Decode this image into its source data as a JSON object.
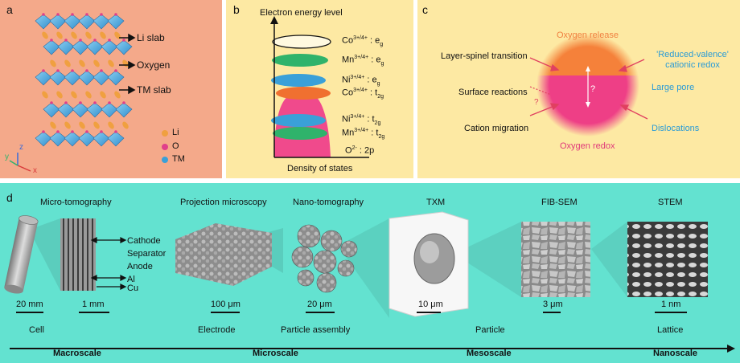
{
  "panel_a": {
    "letter": "a",
    "labels": {
      "li_slab": "Li slab",
      "oxygen": "Oxygen",
      "tm_slab": "TM slab"
    },
    "legend": [
      {
        "label": "Li",
        "color": "#f0a040"
      },
      {
        "label": "O",
        "color": "#e0408a"
      },
      {
        "label": "TM",
        "color": "#3aa0d8"
      }
    ],
    "axes": {
      "z": "z",
      "y": "y",
      "x": "x"
    }
  },
  "panel_b": {
    "letter": "b",
    "y_label": "Electron energy level",
    "x_label": "Density of states",
    "bands": [
      {
        "ion": "Co",
        "ox": "3+/4+",
        "orb": "e",
        "sub": "g",
        "color": "#ffffff"
      },
      {
        "ion": "Mn",
        "ox": "3+/4+",
        "orb": "e",
        "sub": "g",
        "color": "#2fb36b"
      },
      {
        "ion": "Ni",
        "ox": "3+/4+",
        "orb": "e",
        "sub": "g",
        "color": "#3aa0d8"
      },
      {
        "ion": "Co",
        "ox": "3+/4+",
        "orb": "t",
        "sub": "2g",
        "color": "#f07030"
      },
      {
        "ion": "Ni",
        "ox": "3+/4+",
        "orb": "t",
        "sub": "2g",
        "color": "#3aa0d8"
      },
      {
        "ion": "Mn",
        "ox": "3+/4+",
        "orb": "t",
        "sub": "2g",
        "color": "#2fb36b"
      }
    ],
    "o_band": {
      "ion": "O",
      "ox": "2-",
      "orb": ": 2p",
      "color": "#f04a8c"
    }
  },
  "panel_c": {
    "letter": "c",
    "top": "Oxygen release",
    "bottom": "Oxygen redox",
    "left": [
      "Layer-spinel transition",
      "Surface reactions",
      "Cation migration"
    ],
    "right": [
      "'Reduced-valence' cationic redox",
      "Large pore",
      "Dislocations"
    ],
    "question": "?",
    "colors": {
      "release": "#f5813a",
      "redox": "#ee3f86"
    }
  },
  "panel_d": {
    "letter": "d",
    "techniques": [
      "Micro-tomography",
      "Projection microscopy",
      "Nano-tomography",
      "TXM",
      "FIB-SEM",
      "STEM"
    ],
    "layers": [
      "Cathode",
      "Separator",
      "Anode",
      "Al",
      "Cu"
    ],
    "scale_bars": [
      "20 mm",
      "1 mm",
      "100 μm",
      "20 μm",
      "10 μm",
      "3 μm",
      "1 nm"
    ],
    "objects": [
      "Cell",
      "Electrode",
      "Particle assembly",
      "Particle",
      "Lattice"
    ],
    "scales": [
      "Macroscale",
      "Microscale",
      "Mesoscale",
      "Nanoscale"
    ]
  }
}
